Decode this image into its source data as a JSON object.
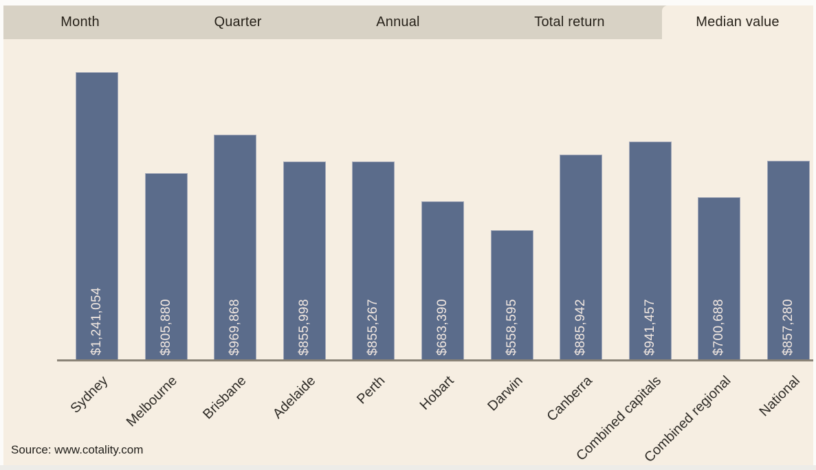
{
  "tabbar": {
    "items": [
      {
        "label": "Month",
        "selected": false
      },
      {
        "label": "Quarter",
        "selected": false
      },
      {
        "label": "Annual",
        "selected": false
      },
      {
        "label": "Total return",
        "selected": false
      },
      {
        "label": "Median value",
        "selected": true
      }
    ]
  },
  "chart_data": {
    "type": "bar",
    "title": "Median value",
    "categories": [
      "Sydney",
      "Melbourne",
      "Brisbane",
      "Adelaide",
      "Perth",
      "Hobart",
      "Darwin",
      "Canberra",
      "Combined capitals",
      "Combined regional",
      "National"
    ],
    "values": [
      1241054,
      805880,
      969868,
      855998,
      855267,
      683390,
      558595,
      885942,
      941457,
      700688,
      857280
    ],
    "value_labels": [
      "$1,241,054",
      "$805,880",
      "$969,868",
      "$855,998",
      "$855,267",
      "$683,390",
      "$558,595",
      "$885,942",
      "$941,457",
      "$700,688",
      "$857,280"
    ],
    "ylim": [
      0,
      1241054
    ],
    "xlabel": "",
    "ylabel": "",
    "grid": false,
    "legend": false,
    "x_tick_rotation": -45,
    "bar_color": "#5b6c8b",
    "value_label_color": "#f2e8e1"
  },
  "source": {
    "label": "Source: www.cotality.com"
  },
  "colors": {
    "page_background": "#f6eee2",
    "tabbar_background": "#d8d2c5",
    "tab_text": "#262119",
    "bar": "#5b6c8b",
    "axis_line": "#8a8377",
    "x_label_text": "#2e2b26"
  }
}
